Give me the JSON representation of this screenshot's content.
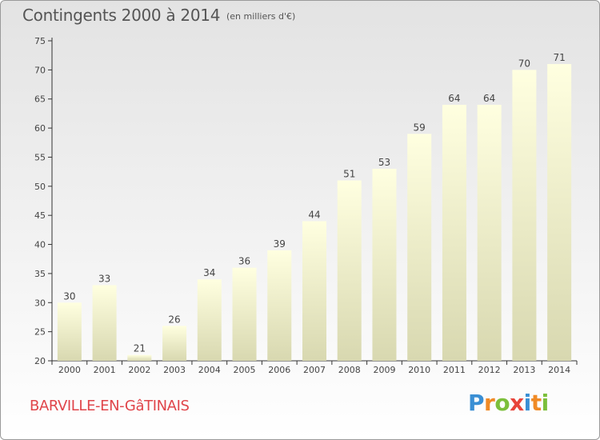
{
  "header": {
    "title": "Contingents 2000 à 2014",
    "subtitle": "(en milliers d'€)"
  },
  "footer": {
    "town": "BARVILLE-EN-GâTINAIS",
    "brand": "Proxiti",
    "brand_colors": [
      "#3a8fd4",
      "#f08a25",
      "#7cbf3b",
      "#e8443a"
    ]
  },
  "chart_data": {
    "type": "bar",
    "title": "Contingents 2000 à 2014",
    "subtitle": "(en milliers d'€)",
    "xlabel": "",
    "ylabel": "",
    "categories": [
      "2000",
      "2001",
      "2002",
      "2003",
      "2004",
      "2005",
      "2006",
      "2007",
      "2008",
      "2009",
      "2010",
      "2011",
      "2012",
      "2013",
      "2014"
    ],
    "values": [
      30,
      33,
      21,
      26,
      34,
      36,
      39,
      44,
      51,
      53,
      59,
      64,
      64,
      70,
      71
    ],
    "ylim": [
      20,
      75
    ],
    "yticks": [
      20,
      25,
      30,
      35,
      40,
      45,
      50,
      55,
      60,
      65,
      70,
      75
    ],
    "grid": false,
    "data_labels": true,
    "bar_color_top": "#ffffe0",
    "bar_color_bottom": "#d8d8b0"
  }
}
